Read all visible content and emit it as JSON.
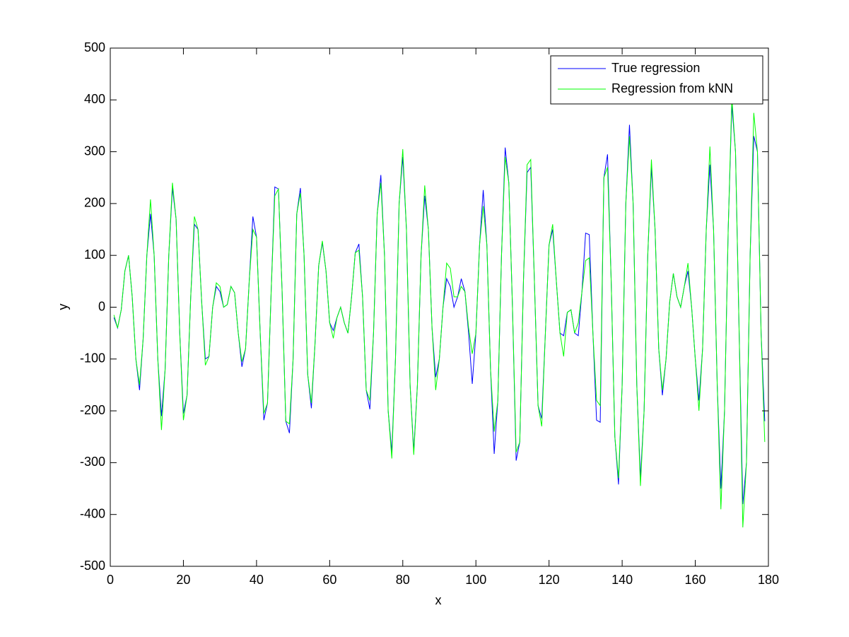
{
  "chart_data": {
    "type": "line",
    "xlabel": "x",
    "ylabel": "y",
    "xlim": [
      0,
      180
    ],
    "xticks": [
      0,
      20,
      40,
      60,
      80,
      100,
      120,
      140,
      160,
      180
    ],
    "ylim": [
      -500,
      500
    ],
    "yticks": [
      -500,
      -400,
      -300,
      -200,
      -100,
      0,
      100,
      200,
      300,
      400,
      500
    ],
    "legend": "upper right",
    "x": [
      1,
      2,
      3,
      4,
      5,
      6,
      7,
      8,
      9,
      10,
      11,
      12,
      13,
      14,
      15,
      16,
      17,
      18,
      19,
      20,
      21,
      22,
      23,
      24,
      25,
      26,
      27,
      28,
      29,
      30,
      31,
      32,
      33,
      34,
      35,
      36,
      37,
      38,
      39,
      40,
      41,
      42,
      43,
      44,
      45,
      46,
      47,
      48,
      49,
      50,
      51,
      52,
      53,
      54,
      55,
      56,
      57,
      58,
      59,
      60,
      61,
      62,
      63,
      64,
      65,
      66,
      67,
      68,
      69,
      70,
      71,
      72,
      73,
      74,
      75,
      76,
      77,
      78,
      79,
      80,
      81,
      82,
      83,
      84,
      85,
      86,
      87,
      88,
      89,
      90,
      91,
      92,
      93,
      94,
      95,
      96,
      97,
      98,
      99,
      100,
      101,
      102,
      103,
      104,
      105,
      106,
      107,
      108,
      109,
      110,
      111,
      112,
      113,
      114,
      115,
      116,
      117,
      118,
      119,
      120,
      121,
      122,
      123,
      124,
      125,
      126,
      127,
      128,
      129,
      130,
      131,
      132,
      133,
      134,
      135,
      136,
      137,
      138,
      139,
      140,
      141,
      142,
      143,
      144,
      145,
      146,
      147,
      148,
      149,
      150,
      151,
      152,
      153,
      154,
      155,
      156,
      157,
      158,
      159,
      160,
      161,
      162,
      163,
      164,
      165,
      166,
      167,
      168,
      169,
      170,
      171,
      172,
      173,
      174,
      175,
      176,
      177,
      178,
      179
    ],
    "series": [
      {
        "name": "True regression",
        "color": "#0000ff",
        "values": [
          -20,
          -40,
          -5,
          70,
          100,
          20,
          -100,
          -160,
          -60,
          100,
          180,
          100,
          -100,
          -210,
          -120,
          100,
          230,
          170,
          -50,
          -205,
          -170,
          20,
          160,
          150,
          10,
          -100,
          -95,
          0,
          40,
          30,
          0,
          5,
          40,
          28,
          -50,
          -115,
          -80,
          50,
          175,
          135,
          -50,
          -218,
          -185,
          30,
          232,
          228,
          30,
          -220,
          -243,
          -100,
          180,
          230,
          100,
          -130,
          -195,
          -70,
          80,
          125,
          70,
          -30,
          -45,
          -20,
          0,
          -30,
          -50,
          20,
          105,
          122,
          20,
          -160,
          -197,
          -50,
          180,
          255,
          100,
          -200,
          -280,
          -100,
          200,
          290,
          150,
          -150,
          -278,
          -150,
          100,
          215,
          150,
          -40,
          -135,
          -100,
          0,
          55,
          40,
          0,
          20,
          55,
          30,
          -50,
          -148,
          -50,
          120,
          226,
          120,
          -120,
          -283,
          -180,
          100,
          308,
          240,
          0,
          -296,
          -260,
          50,
          260,
          270,
          50,
          -190,
          -215,
          -50,
          120,
          150,
          50,
          -50,
          -55,
          -10,
          -5,
          -50,
          -55,
          30,
          143,
          140,
          -50,
          -218,
          -222,
          250,
          295,
          50,
          -250,
          -342,
          -150,
          200,
          352,
          200,
          -150,
          -330,
          -200,
          100,
          270,
          150,
          -80,
          -170,
          -100,
          10,
          65,
          20,
          0,
          40,
          70,
          0,
          -100,
          -180,
          -80,
          150,
          275,
          150,
          -150,
          -350,
          -200,
          150,
          390,
          300,
          -50,
          -380,
          -300,
          100,
          330,
          300,
          -50,
          -220
        ]
      },
      {
        "name": "Regression from kNN",
        "color": "#00ff00",
        "values": [
          -15,
          -40,
          -5,
          70,
          100,
          20,
          -100,
          -150,
          -60,
          100,
          208,
          100,
          -100,
          -237,
          -120,
          100,
          240,
          170,
          -50,
          -218,
          -170,
          20,
          175,
          150,
          10,
          -112,
          -95,
          0,
          47,
          40,
          0,
          5,
          40,
          28,
          -50,
          -105,
          -80,
          50,
          150,
          135,
          -50,
          -205,
          -185,
          30,
          215,
          228,
          30,
          -220,
          -225,
          -100,
          180,
          220,
          100,
          -130,
          -185,
          -70,
          80,
          128,
          70,
          -30,
          -60,
          -20,
          0,
          -30,
          -50,
          20,
          105,
          110,
          20,
          -160,
          -180,
          -50,
          180,
          240,
          100,
          -200,
          -292,
          -100,
          200,
          305,
          150,
          -150,
          -285,
          -150,
          100,
          235,
          150,
          -40,
          -160,
          -100,
          0,
          85,
          75,
          20,
          20,
          40,
          30,
          -40,
          -90,
          -50,
          120,
          195,
          120,
          -120,
          -240,
          -180,
          100,
          290,
          240,
          0,
          -280,
          -260,
          50,
          275,
          285,
          50,
          -190,
          -230,
          -50,
          120,
          160,
          50,
          -50,
          -95,
          -10,
          -5,
          -50,
          -30,
          30,
          90,
          95,
          -50,
          -180,
          -190,
          250,
          270,
          50,
          -250,
          -330,
          -150,
          200,
          330,
          200,
          -150,
          -345,
          -200,
          100,
          285,
          150,
          -80,
          -160,
          -100,
          10,
          65,
          20,
          0,
          40,
          85,
          0,
          -100,
          -200,
          -80,
          150,
          310,
          150,
          -150,
          -390,
          -200,
          150,
          405,
          300,
          -50,
          -425,
          -300,
          100,
          375,
          300,
          -50,
          -260
        ]
      }
    ]
  }
}
